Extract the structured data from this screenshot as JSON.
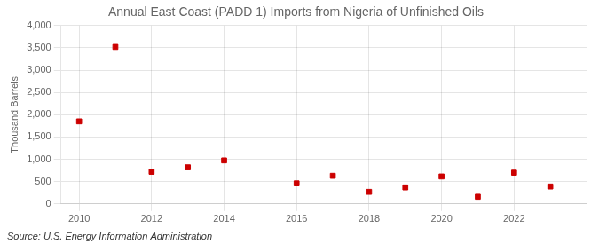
{
  "chart_data": {
    "type": "scatter",
    "title": "Annual East Coast (PADD 1) Imports from Nigeria of Unfinished Oils",
    "y_label": "Thousand Barrels",
    "annotations": [
      "Source: U.S. Energy Information Administration"
    ],
    "x": [
      2010,
      2011,
      2012,
      2013,
      2014,
      2016,
      2017,
      2018,
      2019,
      2020,
      2021,
      2022,
      2023
    ],
    "values": [
      1850,
      3520,
      720,
      820,
      975,
      460,
      630,
      270,
      370,
      615,
      160,
      700,
      390
    ],
    "color": "#cc0000",
    "marker": "square",
    "xlim": [
      2009.5,
      2024.0
    ],
    "ylim": [
      0,
      4000
    ],
    "xticks": [
      2010,
      2012,
      2014,
      2016,
      2018,
      2020,
      2022
    ],
    "yticks": [
      0,
      500,
      {
        "value": 1000,
        "label": "1,000"
      },
      {
        "value": 1500,
        "label": "1,500"
      },
      {
        "value": 2000,
        "label": "2,000"
      },
      {
        "value": 2500,
        "label": "2,500"
      },
      {
        "value": 3000,
        "label": "3,000"
      },
      {
        "value": 3500,
        "label": "3,500"
      },
      {
        "value": 4000,
        "label": "4,000"
      }
    ],
    "grid": true
  }
}
